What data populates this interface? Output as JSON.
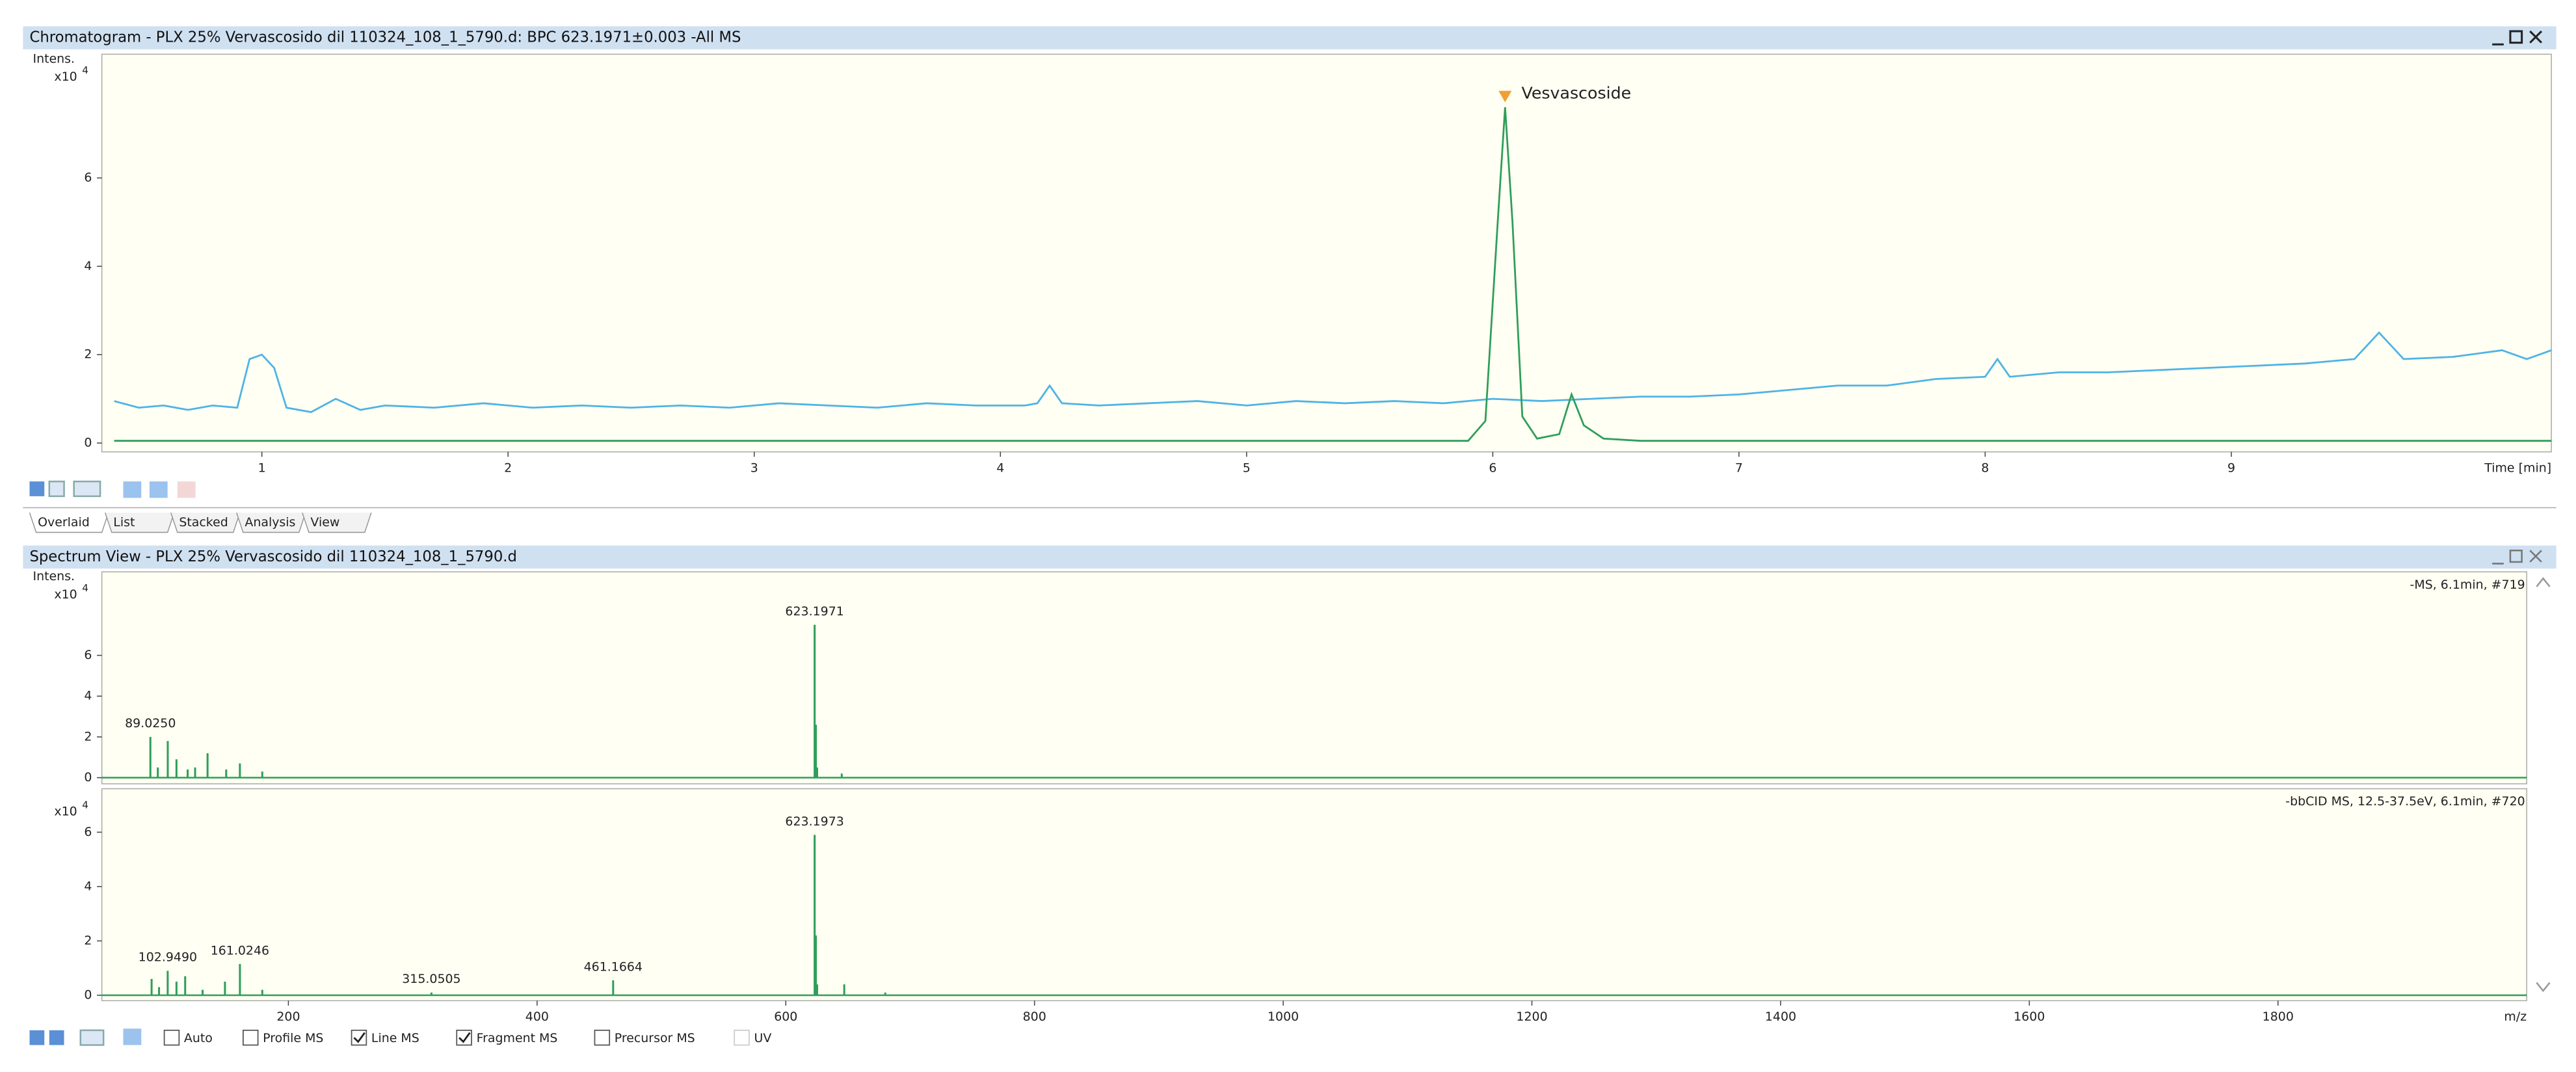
{
  "chromatogram": {
    "window_title": "Chromatogram - PLX 25% Vervascosido dil 110324_108_1_5790.d: BPC 623.1971±0.003 -All MS",
    "chart_data": {
      "type": "line",
      "y_label": "Intens.",
      "y_scale": "x10",
      "y_scale_exponent": "4",
      "x_label": "Time [min]",
      "xlim": [
        0.35,
        10.3
      ],
      "ylim": [
        -0.2,
        8.8
      ],
      "xticks": [
        1,
        2,
        3,
        4,
        5,
        6,
        7,
        8,
        9
      ],
      "yticks": [
        0,
        2,
        4,
        6
      ],
      "series": [
        {
          "color": "#4db3e6",
          "x": [
            0.4,
            0.5,
            0.6,
            0.7,
            0.8,
            0.9,
            0.95,
            1.0,
            1.05,
            1.1,
            1.2,
            1.3,
            1.4,
            1.5,
            1.7,
            1.9,
            2.1,
            2.3,
            2.5,
            2.7,
            2.9,
            3.1,
            3.3,
            3.5,
            3.7,
            3.9,
            4.1,
            4.15,
            4.2,
            4.25,
            4.4,
            4.6,
            4.8,
            5.0,
            5.2,
            5.4,
            5.6,
            5.8,
            6.0,
            6.2,
            6.4,
            6.6,
            6.8,
            7.0,
            7.2,
            7.4,
            7.6,
            7.8,
            8.0,
            8.05,
            8.1,
            8.3,
            8.5,
            8.7,
            8.9,
            9.1,
            9.3,
            9.5,
            9.6,
            9.7,
            9.9,
            10.1,
            10.2,
            10.3
          ],
          "values": [
            0.95,
            0.8,
            0.85,
            0.75,
            0.85,
            0.8,
            1.9,
            2.0,
            1.7,
            0.8,
            0.7,
            1.0,
            0.75,
            0.85,
            0.8,
            0.9,
            0.8,
            0.85,
            0.8,
            0.85,
            0.8,
            0.9,
            0.85,
            0.8,
            0.9,
            0.85,
            0.85,
            0.9,
            1.3,
            0.9,
            0.85,
            0.9,
            0.95,
            0.85,
            0.95,
            0.9,
            0.95,
            0.9,
            1.0,
            0.95,
            1.0,
            1.05,
            1.05,
            1.1,
            1.2,
            1.3,
            1.3,
            1.45,
            1.5,
            1.9,
            1.5,
            1.6,
            1.6,
            1.65,
            1.7,
            1.75,
            1.8,
            1.9,
            2.5,
            1.9,
            1.95,
            2.1,
            1.9,
            2.1
          ]
        },
        {
          "color": "#2e9e5a",
          "x": [
            0.4,
            5.9,
            5.97,
            6.02,
            6.05,
            6.08,
            6.12,
            6.18,
            6.27,
            6.32,
            6.37,
            6.45,
            6.6,
            10.3
          ],
          "values": [
            0.05,
            0.05,
            0.5,
            5.0,
            7.6,
            5.0,
            0.6,
            0.1,
            0.2,
            1.1,
            0.4,
            0.1,
            0.05,
            0.05
          ]
        }
      ],
      "annotations": [
        {
          "x": 6.05,
          "text": "Vesvascoside"
        }
      ]
    }
  },
  "tabs": [
    "Overlaid",
    "List",
    "Stacked",
    "Analysis",
    "View"
  ],
  "spectrum": {
    "window_title": "Spectrum View - PLX 25% Vervascosido dil 110324_108_1_5790.d",
    "charts": [
      {
        "type": "stem",
        "y_label": "Intens.",
        "y_scale": "x10",
        "y_scale_exponent": "4",
        "scan_label": "-MS, 6.1min, #719",
        "xlim": [
          50,
          2000
        ],
        "ylim": [
          -0.3,
          10.1
        ],
        "yticks": [
          0,
          2,
          4,
          6
        ],
        "series": [
          {
            "color": "#2e9e5a",
            "x": [
              89.025,
              95,
              103,
              110,
              119,
              125,
              135,
              150,
              161,
              179,
              623.1971,
              624.2,
              625.2,
              645
            ],
            "values": [
              2.0,
              0.5,
              1.8,
              0.9,
              0.4,
              0.5,
              1.2,
              0.4,
              0.7,
              0.3,
              7.5,
              2.6,
              0.5,
              0.2
            ]
          }
        ],
        "annotations": [
          {
            "x": 89.025,
            "text": "89.0250"
          },
          {
            "x": 623.1971,
            "text": "623.1971"
          }
        ]
      },
      {
        "type": "stem",
        "y_scale": "x10",
        "y_scale_exponent": "4",
        "scan_label": "-bbCID MS, 12.5-37.5eV, 6.1min, #720",
        "x_label": "m/z",
        "xlim": [
          50,
          2000
        ],
        "ylim": [
          -0.2,
          7.6
        ],
        "xticks": [
          200,
          400,
          600,
          800,
          1000,
          1200,
          1400,
          1600,
          1800
        ],
        "yticks": [
          0,
          2,
          4,
          6
        ],
        "series": [
          {
            "color": "#2e9e5a",
            "x": [
              90,
              96,
              102.949,
              110,
              117,
              131,
              149,
              161.0246,
              179,
              315.0505,
              461.1664,
              623.1973,
              624.2,
              625.2,
              647,
              680
            ],
            "values": [
              0.6,
              0.3,
              0.9,
              0.5,
              0.7,
              0.2,
              0.5,
              1.15,
              0.2,
              0.1,
              0.55,
              5.9,
              2.2,
              0.4,
              0.4,
              0.1
            ]
          }
        ],
        "annotations": [
          {
            "x": 102.949,
            "text": "102.9490"
          },
          {
            "x": 161.0246,
            "text": "161.0246"
          },
          {
            "x": 315.0505,
            "text": "315.0505"
          },
          {
            "x": 461.1664,
            "text": "461.1664"
          },
          {
            "x": 623.1973,
            "text": "623.1973"
          }
        ]
      }
    ]
  },
  "options": [
    {
      "label": "Auto",
      "checked": false
    },
    {
      "label": "Profile MS",
      "checked": false
    },
    {
      "label": "Line MS",
      "checked": true
    },
    {
      "label": "Fragment MS",
      "checked": true
    },
    {
      "label": "Precursor MS",
      "checked": false
    },
    {
      "label": "UV",
      "checked": false
    }
  ]
}
